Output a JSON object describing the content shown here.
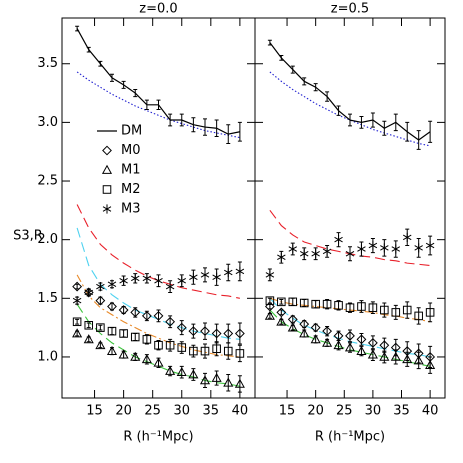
{
  "chart_data": [
    {
      "type": "scatter",
      "title": "z=0.0",
      "xlabel": "R (h⁻¹Mpc)",
      "ylabel": "S3,R",
      "legend": "center-left",
      "xlim": [
        9.4,
        42.6
      ],
      "xticks": [
        15,
        20,
        25,
        30,
        35,
        40
      ],
      "ylim": [
        0.65,
        3.89
      ],
      "yticks": [
        {
          "value": 1.0,
          "label": "1.0"
        },
        1.5,
        {
          "value": 2.0,
          "label": "2.0"
        },
        2.5,
        {
          "value": 3.0,
          "label": "3.0"
        },
        3.5
      ],
      "x": [
        12,
        14,
        16,
        18,
        20,
        22,
        24,
        26,
        28,
        30,
        32,
        34,
        36,
        38,
        40
      ],
      "series": [
        {
          "color": "#2020d0",
          "style": "dotted",
          "values": [
            3.43,
            3.36,
            3.3,
            3.24,
            3.19,
            3.14,
            3.1,
            3.06,
            3.02,
            2.99,
            2.96,
            2.93,
            2.91,
            2.89,
            2.87
          ]
        },
        {
          "color": "#e8202a",
          "style": "dashed",
          "values": [
            2.3,
            2.1,
            1.96,
            1.87,
            1.8,
            1.74,
            1.69,
            1.65,
            1.62,
            1.59,
            1.57,
            1.55,
            1.53,
            1.52,
            1.5
          ]
        },
        {
          "color": "#4fd2f0",
          "style": "dashed",
          "values": [
            2.1,
            1.78,
            1.62,
            1.53,
            1.46,
            1.4,
            1.36,
            1.32,
            1.28,
            1.25,
            1.22,
            1.2,
            1.18,
            1.16,
            1.15
          ]
        },
        {
          "color": "#e88a2a",
          "style": "dashdot",
          "values": [
            1.7,
            1.52,
            1.42,
            1.36,
            1.3,
            1.25,
            1.2,
            1.16,
            1.12,
            1.09,
            1.06,
            1.04,
            1.02,
            1.01,
            1.0
          ]
        },
        {
          "color": "#3cc43c",
          "style": "dashed",
          "values": [
            1.45,
            1.3,
            1.2,
            1.12,
            1.06,
            1.0,
            0.96,
            0.92,
            0.88,
            0.85,
            0.83,
            0.8,
            0.78,
            0.77,
            0.75
          ]
        },
        {
          "name": "DM",
          "color": "#000000",
          "style": "solid",
          "values": [
            3.8,
            3.62,
            3.5,
            3.38,
            3.32,
            3.25,
            3.15,
            3.15,
            3.02,
            3.02,
            2.98,
            2.96,
            2.95,
            2.9,
            2.92
          ],
          "errors": [
            0.02,
            0.02,
            0.02,
            0.03,
            0.03,
            0.03,
            0.04,
            0.04,
            0.05,
            0.05,
            0.06,
            0.07,
            0.07,
            0.08,
            0.08
          ]
        },
        {
          "name": "M0",
          "color": "#000000",
          "marker": "diamond",
          "values": [
            1.6,
            1.55,
            1.48,
            1.43,
            1.4,
            1.38,
            1.35,
            1.35,
            1.3,
            1.25,
            1.22,
            1.22,
            1.2,
            1.2,
            1.2
          ],
          "errors": [
            0.02,
            0.02,
            0.03,
            0.03,
            0.03,
            0.04,
            0.04,
            0.05,
            0.05,
            0.06,
            0.06,
            0.07,
            0.08,
            0.08,
            0.09
          ]
        },
        {
          "name": "M1",
          "color": "#000000",
          "marker": "triangle",
          "values": [
            1.2,
            1.15,
            1.1,
            1.05,
            1.02,
            1.0,
            0.98,
            0.95,
            0.88,
            0.87,
            0.85,
            0.8,
            0.82,
            0.78,
            0.77
          ],
          "errors": [
            0.02,
            0.02,
            0.02,
            0.03,
            0.03,
            0.03,
            0.04,
            0.04,
            0.04,
            0.05,
            0.05,
            0.06,
            0.06,
            0.07,
            0.07
          ]
        },
        {
          "name": "M2",
          "color": "#000000",
          "marker": "square",
          "values": [
            1.3,
            1.27,
            1.25,
            1.22,
            1.2,
            1.17,
            1.15,
            1.1,
            1.1,
            1.08,
            1.05,
            1.05,
            1.07,
            1.05,
            1.03
          ],
          "errors": [
            0.02,
            0.02,
            0.02,
            0.03,
            0.03,
            0.03,
            0.04,
            0.04,
            0.05,
            0.05,
            0.05,
            0.06,
            0.06,
            0.07,
            0.07
          ]
        },
        {
          "name": "M3",
          "color": "#000000",
          "marker": "asterisk",
          "values": [
            1.48,
            1.55,
            1.6,
            1.62,
            1.65,
            1.67,
            1.67,
            1.65,
            1.6,
            1.65,
            1.68,
            1.7,
            1.68,
            1.72,
            1.73
          ],
          "errors": [
            0.03,
            0.03,
            0.03,
            0.03,
            0.04,
            0.04,
            0.04,
            0.05,
            0.05,
            0.05,
            0.06,
            0.06,
            0.07,
            0.07,
            0.08
          ]
        }
      ]
    },
    {
      "type": "scatter",
      "title": "z=0.5",
      "xlabel": "R (h⁻¹Mpc)",
      "xlim": [
        9.4,
        42.6
      ],
      "xticks": [
        15,
        20,
        25,
        30,
        35,
        40
      ],
      "x": [
        12,
        14,
        16,
        18,
        20,
        22,
        24,
        26,
        28,
        30,
        32,
        34,
        36,
        38,
        40
      ],
      "series": [
        {
          "color": "#2020d0",
          "style": "dotted",
          "values": [
            3.43,
            3.35,
            3.28,
            3.22,
            3.16,
            3.11,
            3.06,
            3.02,
            2.98,
            2.94,
            2.91,
            2.88,
            2.85,
            2.82,
            2.8
          ]
        },
        {
          "color": "#e8202a",
          "style": "dashed",
          "values": [
            2.25,
            2.12,
            2.04,
            1.98,
            1.95,
            1.92,
            1.9,
            1.88,
            1.86,
            1.85,
            1.83,
            1.82,
            1.8,
            1.79,
            1.78
          ]
        },
        {
          "color": "#4fd2f0",
          "style": "dashed",
          "values": [
            1.5,
            1.4,
            1.33,
            1.27,
            1.23,
            1.19,
            1.16,
            1.13,
            1.11,
            1.09,
            1.07,
            1.05,
            1.03,
            1.02,
            1.0
          ]
        },
        {
          "color": "#e88a2a",
          "style": "dashdot",
          "values": [
            1.5,
            1.47,
            1.45,
            1.44,
            1.43,
            1.42,
            1.41,
            1.4,
            1.39,
            1.38,
            1.36,
            1.35,
            1.33,
            1.32,
            1.3
          ]
        },
        {
          "color": "#3cc43c",
          "style": "dashed",
          "values": [
            1.4,
            1.3,
            1.24,
            1.19,
            1.15,
            1.12,
            1.09,
            1.06,
            1.04,
            1.02,
            1.0,
            0.98,
            0.96,
            0.94,
            0.92
          ]
        },
        {
          "color": "#000000",
          "style": "solid",
          "values": [
            3.68,
            3.55,
            3.45,
            3.35,
            3.3,
            3.22,
            3.1,
            3.02,
            3.0,
            3.02,
            2.95,
            3.0,
            2.92,
            2.85,
            2.92
          ],
          "errors": [
            0.02,
            0.02,
            0.03,
            0.03,
            0.03,
            0.04,
            0.04,
            0.05,
            0.05,
            0.06,
            0.06,
            0.07,
            0.08,
            0.08,
            0.09
          ]
        },
        {
          "color": "#000000",
          "marker": "diamond",
          "values": [
            1.43,
            1.38,
            1.32,
            1.28,
            1.25,
            1.22,
            1.18,
            1.18,
            1.15,
            1.12,
            1.1,
            1.08,
            1.05,
            1.03,
            1.0
          ],
          "errors": [
            0.02,
            0.02,
            0.03,
            0.03,
            0.03,
            0.04,
            0.04,
            0.05,
            0.05,
            0.06,
            0.06,
            0.07,
            0.08,
            0.08,
            0.09
          ]
        },
        {
          "color": "#000000",
          "marker": "triangle",
          "values": [
            1.35,
            1.3,
            1.25,
            1.2,
            1.15,
            1.12,
            1.1,
            1.08,
            1.05,
            1.02,
            1.0,
            1.0,
            0.98,
            0.97,
            0.93
          ],
          "errors": [
            0.02,
            0.02,
            0.02,
            0.03,
            0.03,
            0.03,
            0.04,
            0.04,
            0.04,
            0.05,
            0.05,
            0.06,
            0.06,
            0.07,
            0.07
          ]
        },
        {
          "color": "#000000",
          "marker": "square",
          "values": [
            1.48,
            1.47,
            1.47,
            1.46,
            1.45,
            1.45,
            1.44,
            1.42,
            1.43,
            1.42,
            1.4,
            1.38,
            1.4,
            1.35,
            1.38
          ],
          "errors": [
            0.02,
            0.02,
            0.03,
            0.03,
            0.03,
            0.04,
            0.04,
            0.04,
            0.05,
            0.05,
            0.06,
            0.06,
            0.07,
            0.07,
            0.08
          ]
        },
        {
          "color": "#000000",
          "marker": "asterisk",
          "values": [
            1.7,
            1.85,
            1.92,
            1.88,
            1.88,
            1.9,
            2.0,
            1.88,
            1.92,
            1.95,
            1.93,
            1.92,
            2.02,
            1.93,
            1.95
          ],
          "errors": [
            0.05,
            0.05,
            0.05,
            0.05,
            0.05,
            0.05,
            0.06,
            0.06,
            0.06,
            0.06,
            0.07,
            0.07,
            0.07,
            0.08,
            0.08
          ]
        }
      ]
    }
  ]
}
